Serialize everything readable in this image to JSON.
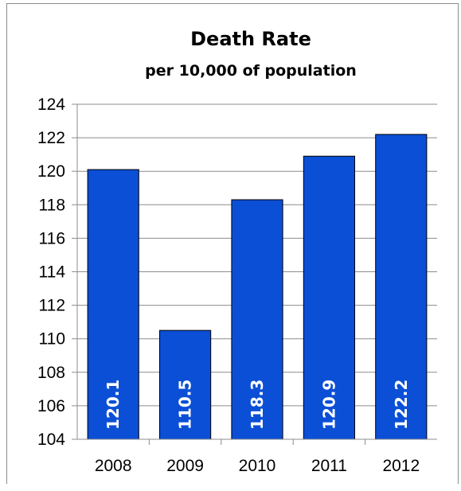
{
  "chart_data": {
    "type": "bar",
    "title": "Death Rate",
    "subtitle": "per 10,000 of population",
    "categories": [
      "2008",
      "2009",
      "2010",
      "2011",
      "2012"
    ],
    "values": [
      120.1,
      110.5,
      118.3,
      120.9,
      122.2
    ],
    "data_labels": [
      "120.1",
      "110.5",
      "118.3",
      "120.9",
      "122.2"
    ],
    "ylim": [
      104,
      124
    ],
    "yticks": [
      "104",
      "106",
      "108",
      "110",
      "112",
      "114",
      "116",
      "118",
      "120",
      "122",
      "124"
    ],
    "xlabel": "",
    "ylabel": "",
    "grid": true,
    "legend": "none",
    "bar_color": "#0b4fd6",
    "bar_border_color": "#000000"
  }
}
